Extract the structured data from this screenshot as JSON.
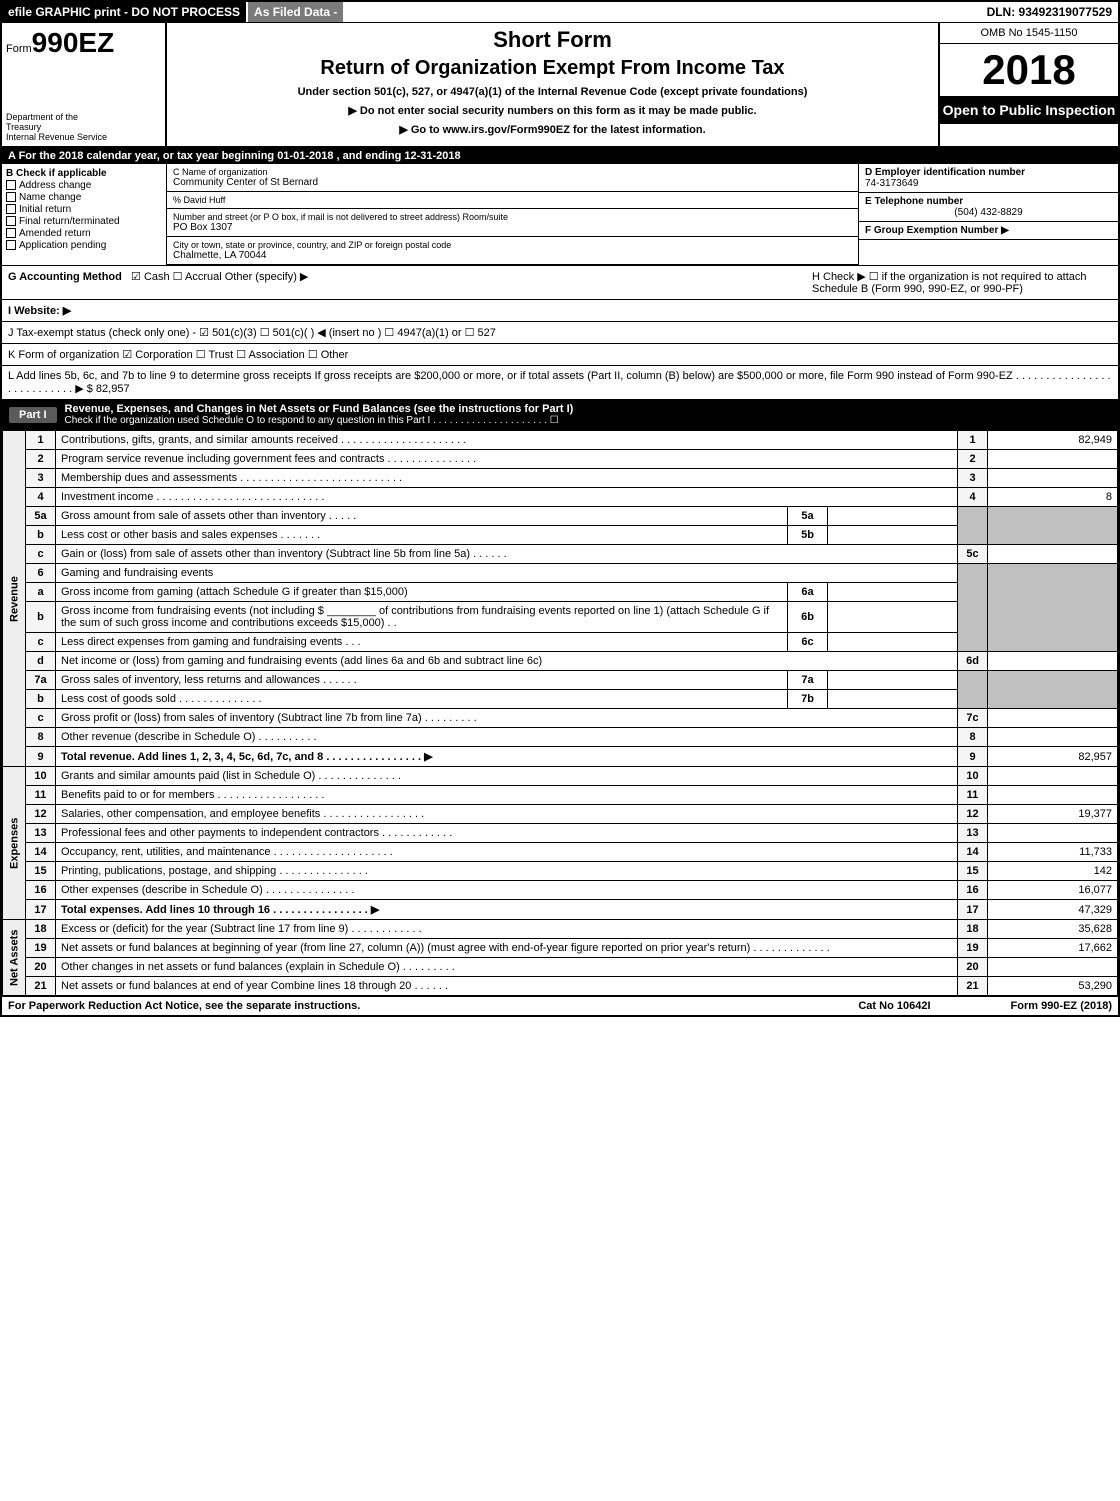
{
  "topbar": {
    "efile": "efile GRAPHIC print - DO NOT PROCESS",
    "asfiled": "As Filed Data -",
    "dln": "DLN: 93492319077529"
  },
  "header": {
    "form_prefix": "Form",
    "form_code": "990EZ",
    "dept1": "Department of the",
    "dept2": "Treasury",
    "dept3": "Internal Revenue Service",
    "short_form": "Short Form",
    "title": "Return of Organization Exempt From Income Tax",
    "subtitle": "Under section 501(c), 527, or 4947(a)(1) of the Internal Revenue Code (except private foundations)",
    "warn": "Do not enter social security numbers on this form as it may be made public.",
    "goto": "Go to www.irs.gov/Form990EZ for the latest information.",
    "omb": "OMB No 1545-1150",
    "year": "2018",
    "open": "Open to Public Inspection"
  },
  "rowA": "A  For the 2018 calendar year, or tax year beginning 01-01-2018           , and ending 12-31-2018",
  "boxB": {
    "title": "B  Check if applicable",
    "opts": [
      "Address change",
      "Name change",
      "Initial return",
      "Final return/terminated",
      "Amended return",
      "Application pending"
    ]
  },
  "boxC": {
    "name_label": "C Name of organization",
    "name": "Community Center of St Bernard",
    "co_label": "% David Huff",
    "addr_label": "Number and street (or P O box, if mail is not delivered to street address) Room/suite",
    "addr": "PO Box 1307",
    "city_label": "City or town, state or province, country, and ZIP or foreign postal code",
    "city": "Chalmette, LA  70044"
  },
  "boxD": {
    "d_label": "D Employer identification number",
    "d_val": "74-3173649",
    "e_label": "E Telephone number",
    "e_val": "(504) 432-8829",
    "f_label": "F Group Exemption Number  ▶"
  },
  "gh": {
    "g_label": "G Accounting Method",
    "g_opts": "☑ Cash   ☐ Accrual   Other (specify) ▶",
    "h_text": "H   Check ▶  ☐  if the organization is not required to attach Schedule B (Form 990, 990-EZ, or 990-PF)",
    "i_label": "I Website: ▶",
    "j_text": "J Tax-exempt status (check only one) - ☑ 501(c)(3) ☐ 501(c)( ) ◀ (insert no ) ☐ 4947(a)(1) or ☐ 527",
    "k_text": "K Form of organization     ☑ Corporation   ☐ Trust   ☐ Association   ☐ Other",
    "l_text": "L Add lines 5b, 6c, and 7b to line 9 to determine gross receipts  If gross receipts are $200,000 or more, or if total assets (Part II, column (B) below) are $500,000 or more, file Form 990 instead of Form 990-EZ  . . . . . . . . . . . . . . . . . . . . . . . . . . . ▶ $ 82,957"
  },
  "part1": {
    "tag": "Part I",
    "title": "Revenue, Expenses, and Changes in Net Assets or Fund Balances (see the instructions for Part I)",
    "sub": "Check if the organization used Schedule O to respond to any question in this Part I . . . . . . . . . . . . . . . . . . . . . ☐"
  },
  "sections": {
    "rev": "Revenue",
    "exp": "Expenses",
    "net": "Net Assets"
  },
  "lines": {
    "l1": {
      "n": "1",
      "d": "Contributions, gifts, grants, and similar amounts received . . . . . . . . . . . . . . . . . . . . .",
      "v": "82,949"
    },
    "l2": {
      "n": "2",
      "d": "Program service revenue including government fees and contracts . . . . . . . . . . . . . . .",
      "v": ""
    },
    "l3": {
      "n": "3",
      "d": "Membership dues and assessments . . . . . . . . . . . . . . . . . . . . . . . . . . .",
      "v": ""
    },
    "l4": {
      "n": "4",
      "d": "Investment income . . . . . . . . . . . . . . . . . . . . . . . . . . . .",
      "v": "8"
    },
    "l5a": {
      "n": "5a",
      "d": "Gross amount from sale of assets other than inventory . . . . .",
      "sb": "5a"
    },
    "l5b": {
      "n": "b",
      "d": "Less  cost or other basis and sales expenses . . . . . . .",
      "sb": "5b"
    },
    "l5c": {
      "n": "c",
      "d": "Gain or (loss) from sale of assets other than inventory (Subtract line 5b from line 5a) . . . . . .",
      "rn": "5c",
      "v": ""
    },
    "l6": {
      "n": "6",
      "d": "Gaming and fundraising events"
    },
    "l6a": {
      "n": "a",
      "d": "Gross income from gaming (attach Schedule G if greater than $15,000)",
      "sb": "6a"
    },
    "l6b": {
      "n": "b",
      "d": "Gross income from fundraising events (not including $ ________ of contributions from fundraising events reported on line 1) (attach Schedule G if the sum of such gross income and contributions exceeds $15,000)    . .",
      "sb": "6b"
    },
    "l6c": {
      "n": "c",
      "d": "Less  direct expenses from gaming and fundraising events     . . .",
      "sb": "6c"
    },
    "l6d": {
      "n": "d",
      "d": "Net income or (loss) from gaming and fundraising events (add lines 6a and 6b and subtract line 6c)",
      "rn": "6d",
      "v": ""
    },
    "l7a": {
      "n": "7a",
      "d": "Gross sales of inventory, less returns and allowances . . . . . .",
      "sb": "7a"
    },
    "l7b": {
      "n": "b",
      "d": "Less  cost of goods sold             . . . . . . . . . . . . . .",
      "sb": "7b"
    },
    "l7c": {
      "n": "c",
      "d": "Gross profit or (loss) from sales of inventory (Subtract line 7b from line 7a) . . . . . . . . .",
      "rn": "7c",
      "v": ""
    },
    "l8": {
      "n": "8",
      "d": "Other revenue (describe in Schedule O)                       . . . . . . . . . .",
      "v": ""
    },
    "l9": {
      "n": "9",
      "d": "Total revenue. Add lines 1, 2, 3, 4, 5c, 6d, 7c, and 8  . . . . . . . . . . . . . . . .  ▶",
      "v": "82,957"
    },
    "l10": {
      "n": "10",
      "d": "Grants and similar amounts paid (list in Schedule O)           . . . . . . . . . . . . . .",
      "v": ""
    },
    "l11": {
      "n": "11",
      "d": "Benefits paid to or for members                 . . . . . . . . . . . . . . . . . .",
      "v": ""
    },
    "l12": {
      "n": "12",
      "d": "Salaries, other compensation, and employee benefits . . . . . . . . . . . . . . . . .",
      "v": "19,377"
    },
    "l13": {
      "n": "13",
      "d": "Professional fees and other payments to independent contractors . . . . . . . . . . . .",
      "v": ""
    },
    "l14": {
      "n": "14",
      "d": "Occupancy, rent, utilities, and maintenance . . . . . . . . . . . . . . . . . . . .",
      "v": "11,733"
    },
    "l15": {
      "n": "15",
      "d": "Printing, publications, postage, and shipping             . . . . . . . . . . . . . . .",
      "v": "142"
    },
    "l16": {
      "n": "16",
      "d": "Other expenses (describe in Schedule O)               . . . . . . . . . . . . . . .",
      "v": "16,077"
    },
    "l17": {
      "n": "17",
      "d": "Total expenses. Add lines 10 through 16         . . . . . . . . . . . . . . . .  ▶",
      "v": "47,329"
    },
    "l18": {
      "n": "18",
      "d": "Excess or (deficit) for the year (Subtract line 17 from line 9)       . . . . . . . . . . . .",
      "v": "35,628"
    },
    "l19": {
      "n": "19",
      "d": "Net assets or fund balances at beginning of year (from line 27, column (A)) (must agree with end-of-year figure reported on prior year's return)               . . . . . . . . . . . . .",
      "v": "17,662"
    },
    "l20": {
      "n": "20",
      "d": "Other changes in net assets or fund balances (explain in Schedule O)     . . . . . . . . .",
      "v": ""
    },
    "l21": {
      "n": "21",
      "d": "Net assets or fund balances at end of year  Combine lines 18 through 20         . . . . . .",
      "v": "53,290"
    }
  },
  "footer": {
    "paperwork": "For Paperwork Reduction Act Notice, see the separate instructions.",
    "cat": "Cat No  10642I",
    "form": "Form 990-EZ (2018)"
  }
}
